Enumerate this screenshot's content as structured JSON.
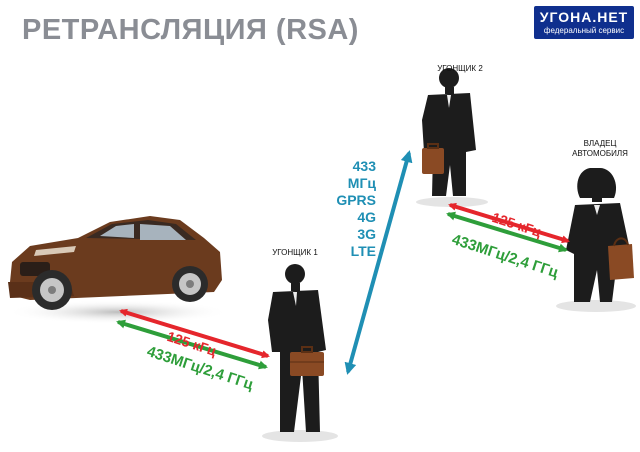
{
  "title": "РЕТРАНСЛЯЦИЯ (RSA)",
  "logo": {
    "name": "УГОНА.НЕТ",
    "subtitle": "федеральный сервис"
  },
  "people": {
    "thief1": "УГОНЩИК 1",
    "thief2": "УГОНЩИК 2",
    "owner_line1": "ВЛАДЕЦ",
    "owner_line2": "АВТОМОБИЛЯ"
  },
  "left_link": {
    "low_freq": "125 кГц",
    "high_freq": "433МГц/2,4 ГГц"
  },
  "right_link": {
    "low_freq": "125 кГц",
    "high_freq": "433МГц/2,4 ГГц"
  },
  "relay_link": {
    "labels": [
      "433 МГц",
      "GPRS",
      "4G",
      "3G",
      "LTE"
    ]
  },
  "colors": {
    "title": "#8a8d94",
    "logo_bg": "#0f2f8e",
    "red": "#e5262c",
    "green": "#2e9e3a",
    "relay": "#1f8fb4",
    "car": "#6b3b1e",
    "silhouette": "#1c1c1c",
    "briefcase": "#8a4a24"
  }
}
